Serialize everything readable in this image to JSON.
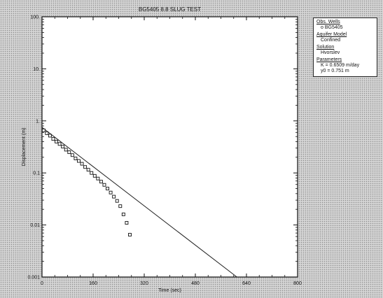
{
  "chart_data": {
    "type": "scatter",
    "title": "BG5405 8.8 SLUG TEST",
    "xlabel": "Time (sec)",
    "ylabel": "Displacement (m)",
    "xlim": [
      0,
      800
    ],
    "ylim": [
      0.001,
      100
    ],
    "yscale": "log",
    "grid": false,
    "legend_position": "right",
    "x_ticks": [
      "0",
      "160",
      "320",
      "480",
      "640",
      "800"
    ],
    "y_ticks": [
      "0.001",
      "0.01",
      "0.1",
      "1.",
      "10.",
      "100."
    ],
    "series": [
      {
        "kind": "observed",
        "x": [
          5,
          15,
          25,
          35,
          45,
          55,
          65,
          75,
          85,
          95,
          105,
          115,
          125,
          135,
          145,
          155,
          165,
          175,
          185,
          195,
          205,
          215,
          225,
          235,
          245,
          255,
          265,
          275
        ],
        "y": [
          0.66,
          0.58,
          0.52,
          0.45,
          0.4,
          0.36,
          0.32,
          0.28,
          0.25,
          0.22,
          0.19,
          0.17,
          0.15,
          0.13,
          0.115,
          0.1,
          0.088,
          0.078,
          0.068,
          0.059,
          0.05,
          0.042,
          0.035,
          0.029,
          0.023,
          0.016,
          0.011,
          0.0065
        ]
      },
      {
        "kind": "fitted",
        "x": [
          0,
          610
        ],
        "y": [
          0.751,
          0.001
        ]
      }
    ]
  },
  "legend": {
    "obs_wells_heading": "Obs. Wells",
    "obs_well": "o BG5405",
    "aquifer_heading": "Aquifer Model",
    "aquifer_value": "Confined",
    "solution_heading": "Solution",
    "solution_value": "Hvorslev",
    "parameters_heading": "Parameters",
    "param_k": "K = 0.6509 m/day",
    "param_y0": "y0 = 0.751 m"
  },
  "colors": {
    "plot_background": "#ffffff",
    "ink": "#111111"
  }
}
